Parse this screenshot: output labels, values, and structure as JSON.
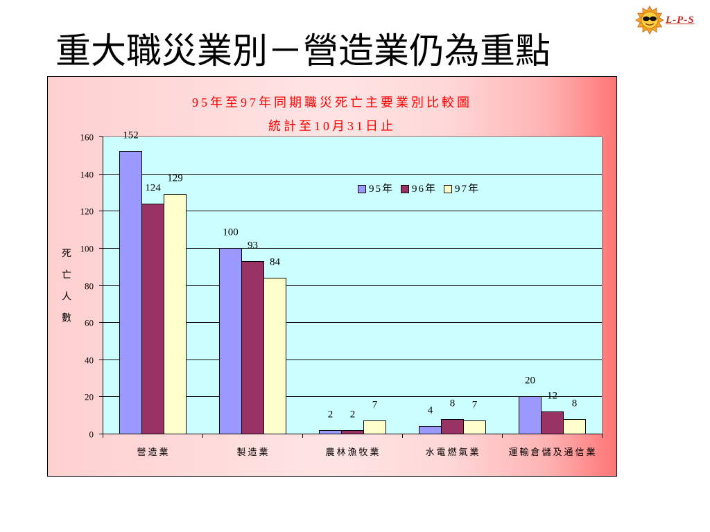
{
  "slide": {
    "title": "重大職災業別－營造業仍為重點",
    "logo_text": "L-P-S"
  },
  "chart_data": {
    "type": "bar",
    "title": "95年至97年同期職災死亡主要業別比較圖",
    "subtitle": "統計至10月31日止",
    "ylabel": "死亡人數",
    "categories": [
      "營造業",
      "製造業",
      "農林漁牧業",
      "水電燃氣業",
      "運輸倉儲及通信業"
    ],
    "series": [
      {
        "name": "95年",
        "values": [
          152,
          100,
          2,
          4,
          20
        ],
        "color": "#9999ff"
      },
      {
        "name": "96年",
        "values": [
          124,
          93,
          2,
          8,
          12
        ],
        "color": "#993366"
      },
      {
        "name": "97年",
        "values": [
          129,
          84,
          7,
          7,
          8
        ],
        "color": "#ffffcc"
      }
    ],
    "ylim": [
      0,
      160
    ],
    "yticks": [
      0,
      20,
      40,
      60,
      80,
      100,
      120,
      140,
      160
    ],
    "grid": true,
    "data_labels": true,
    "legend_position": "inside-top-right",
    "colors": {
      "title": "#ff0000",
      "plot_background": "#ccffff",
      "gridline": "#000000",
      "plot_border": "#808080"
    }
  }
}
